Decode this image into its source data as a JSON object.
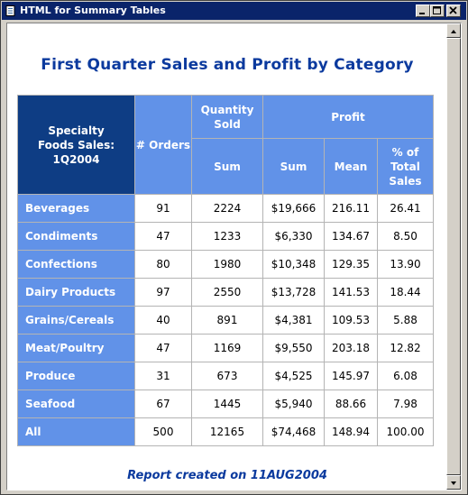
{
  "window": {
    "title": "HTML for Summary Tables"
  },
  "report": {
    "title": "First Quarter Sales and Profit by Category",
    "footer": "Report created on 11AUG2004"
  },
  "table": {
    "corner_label": "Specialty\nFoods Sales:\n1Q2004",
    "col_orders": "# Orders",
    "col_quantity_group": "Quantity Sold",
    "col_profit_group": "Profit",
    "col_quantity_sum": "Sum",
    "col_profit_sum": "Sum",
    "col_profit_mean": "Mean",
    "col_profit_pct": "% of Total Sales",
    "rows": [
      {
        "category": "Beverages",
        "orders": "91",
        "qty_sum": "2224",
        "profit_sum": "$19,666",
        "mean": "216.11",
        "pct": "26.41"
      },
      {
        "category": "Condiments",
        "orders": "47",
        "qty_sum": "1233",
        "profit_sum": "$6,330",
        "mean": "134.67",
        "pct": "8.50"
      },
      {
        "category": "Confections",
        "orders": "80",
        "qty_sum": "1980",
        "profit_sum": "$10,348",
        "mean": "129.35",
        "pct": "13.90"
      },
      {
        "category": "Dairy Products",
        "orders": "97",
        "qty_sum": "2550",
        "profit_sum": "$13,728",
        "mean": "141.53",
        "pct": "18.44"
      },
      {
        "category": "Grains/Cereals",
        "orders": "40",
        "qty_sum": "891",
        "profit_sum": "$4,381",
        "mean": "109.53",
        "pct": "5.88"
      },
      {
        "category": "Meat/Poultry",
        "orders": "47",
        "qty_sum": "1169",
        "profit_sum": "$9,550",
        "mean": "203.18",
        "pct": "12.82"
      },
      {
        "category": "Produce",
        "orders": "31",
        "qty_sum": "673",
        "profit_sum": "$4,525",
        "mean": "145.97",
        "pct": "6.08"
      },
      {
        "category": "Seafood",
        "orders": "67",
        "qty_sum": "1445",
        "profit_sum": "$5,940",
        "mean": "88.66",
        "pct": "7.98"
      },
      {
        "category": "All",
        "orders": "500",
        "qty_sum": "12165",
        "profit_sum": "$74,468",
        "mean": "148.94",
        "pct": "100.00"
      }
    ]
  },
  "icons": {
    "app": "document-icon",
    "minimize": "minimize-icon",
    "maximize": "maximize-icon",
    "close": "close-icon",
    "scroll_up": "arrow-up-icon",
    "scroll_down": "arrow-down-icon"
  },
  "colors": {
    "title_bar": "#0a246a",
    "header_dark": "#0e3d84",
    "header_light": "#6192e8",
    "title_text": "#0b3a9e"
  }
}
